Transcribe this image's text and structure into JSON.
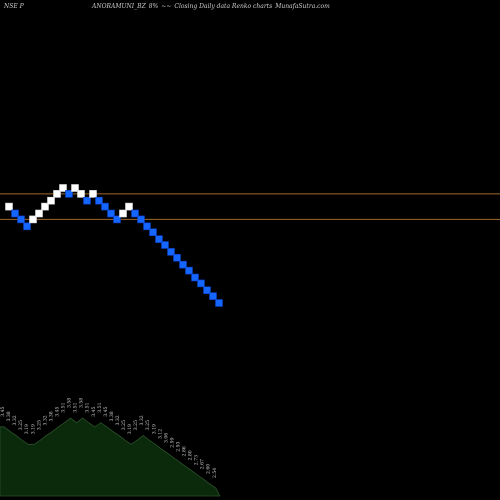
{
  "header": {
    "exchange": "NSE P",
    "symbol": "ANORAMUNI_BZ",
    "change": "8%",
    "arrows": "~~",
    "chart_kind": "Closing Daily data  Renko  charts",
    "site": "MunafaSutra.com"
  },
  "colors": {
    "background": "#000000",
    "up_brick": "#ffffff",
    "down_brick": "#1565ff",
    "down_brick_border": "#0a3dbf",
    "level_line": "#a06a2a",
    "volume_fill": "#0b2a0b",
    "volume_stroke": "#2a4f2a",
    "label_text": "#cfcfcf"
  },
  "chart_data": {
    "type": "renko",
    "title": "",
    "xlabel": "",
    "ylabel": "",
    "bricks": [
      {
        "dir": "up",
        "value": 3.4
      },
      {
        "dir": "down",
        "value": 3.33
      },
      {
        "dir": "down",
        "value": 3.27
      },
      {
        "dir": "down",
        "value": 3.2
      },
      {
        "dir": "up",
        "value": 3.27
      },
      {
        "dir": "up",
        "value": 3.33
      },
      {
        "dir": "up",
        "value": 3.4
      },
      {
        "dir": "up",
        "value": 3.46
      },
      {
        "dir": "up",
        "value": 3.53
      },
      {
        "dir": "up",
        "value": 3.59
      },
      {
        "dir": "down",
        "value": 3.53
      },
      {
        "dir": "up",
        "value": 3.59
      },
      {
        "dir": "up",
        "value": 3.53
      },
      {
        "dir": "down",
        "value": 3.46
      },
      {
        "dir": "up",
        "value": 3.53
      },
      {
        "dir": "down",
        "value": 3.46
      },
      {
        "dir": "down",
        "value": 3.4
      },
      {
        "dir": "down",
        "value": 3.33
      },
      {
        "dir": "down",
        "value": 3.27
      },
      {
        "dir": "up",
        "value": 3.33
      },
      {
        "dir": "up",
        "value": 3.4
      },
      {
        "dir": "down",
        "value": 3.33
      },
      {
        "dir": "down",
        "value": 3.27
      },
      {
        "dir": "down",
        "value": 3.2
      },
      {
        "dir": "down",
        "value": 3.14
      },
      {
        "dir": "down",
        "value": 3.07
      },
      {
        "dir": "down",
        "value": 3.01
      },
      {
        "dir": "down",
        "value": 2.94
      },
      {
        "dir": "down",
        "value": 2.88
      },
      {
        "dir": "down",
        "value": 2.81
      },
      {
        "dir": "down",
        "value": 2.75
      },
      {
        "dir": "down",
        "value": 2.68
      },
      {
        "dir": "down",
        "value": 2.62
      },
      {
        "dir": "down",
        "value": 2.55
      },
      {
        "dir": "down",
        "value": 2.49
      },
      {
        "dir": "down",
        "value": 2.42
      }
    ],
    "price_labels": [
      "3.45",
      "3.38",
      "3.32",
      "3.25",
      "3.19",
      "3.19",
      "3.25",
      "3.32",
      "3.38",
      "3.45",
      "3.51",
      "3.58",
      "3.51",
      "3.58",
      "3.51",
      "3.45",
      "3.51",
      "3.45",
      "3.38",
      "3.32",
      "3.25",
      "3.19",
      "3.25",
      "3.32",
      "3.25",
      "3.19",
      "3.12",
      "3.06",
      "2.99",
      "2.93",
      "2.86",
      "2.80",
      "2.73",
      "2.67",
      "2.60",
      "2.54"
    ],
    "reference_levels": [
      3.53,
      3.27
    ],
    "y_range": [
      2.4,
      3.62
    ],
    "grid": false,
    "legend": "none"
  }
}
